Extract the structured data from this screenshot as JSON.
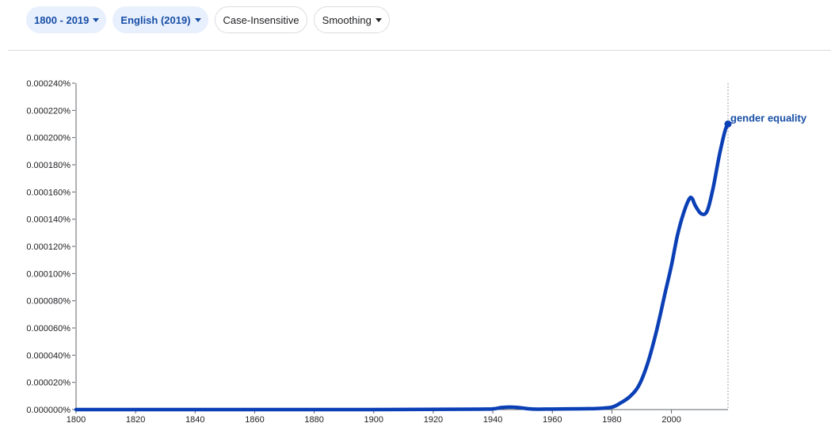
{
  "toolbar": {
    "year_range": "1800 - 2019",
    "corpus": "English (2019)",
    "case": "Case-Insensitive",
    "smoothing": "Smoothing"
  },
  "colors": {
    "series": "#0b3fb5",
    "chip_bg": "#e8f0fe",
    "chip_text": "#174ea6"
  },
  "chart_data": {
    "type": "line",
    "title": "",
    "xlabel": "",
    "ylabel": "",
    "xlim": [
      1800,
      2019
    ],
    "ylim": [
      0,
      0.00024
    ],
    "x_ticks": [
      1800,
      1820,
      1840,
      1860,
      1880,
      1900,
      1920,
      1940,
      1960,
      1980,
      2000
    ],
    "y_ticks": [
      "0.000000%",
      "0.000020%",
      "0.000040%",
      "0.000060%",
      "0.000080%",
      "0.000100%",
      "0.000120%",
      "0.000140%",
      "0.000160%",
      "0.000180%",
      "0.000200%",
      "0.000220%",
      "0.000240%"
    ],
    "grid": false,
    "series": [
      {
        "name": "gender equality",
        "x": [
          1800,
          1900,
          1935,
          1940,
          1943,
          1946,
          1949,
          1952,
          1955,
          1960,
          1970,
          1975,
          1980,
          1983,
          1986,
          1989,
          1992,
          1995,
          1998,
          2000,
          2002,
          2004,
          2006,
          2007,
          2008,
          2010,
          2012,
          2014,
          2016,
          2018,
          2019
        ],
        "y": [
          0,
          0,
          3e-07,
          5e-07,
          1.5e-06,
          1.8e-06,
          1.4e-06,
          6e-07,
          3e-07,
          4e-07,
          6e-07,
          8e-07,
          1.8e-06,
          5e-06,
          9.5e-06,
          1.75e-05,
          3.4e-05,
          5.8e-05,
          8.7e-05,
          0.000106,
          0.000128,
          0.000144,
          0.000155,
          0.000155,
          0.00015,
          0.000144,
          0.000146,
          0.000163,
          0.000186,
          0.000205,
          0.00021
        ]
      }
    ]
  }
}
